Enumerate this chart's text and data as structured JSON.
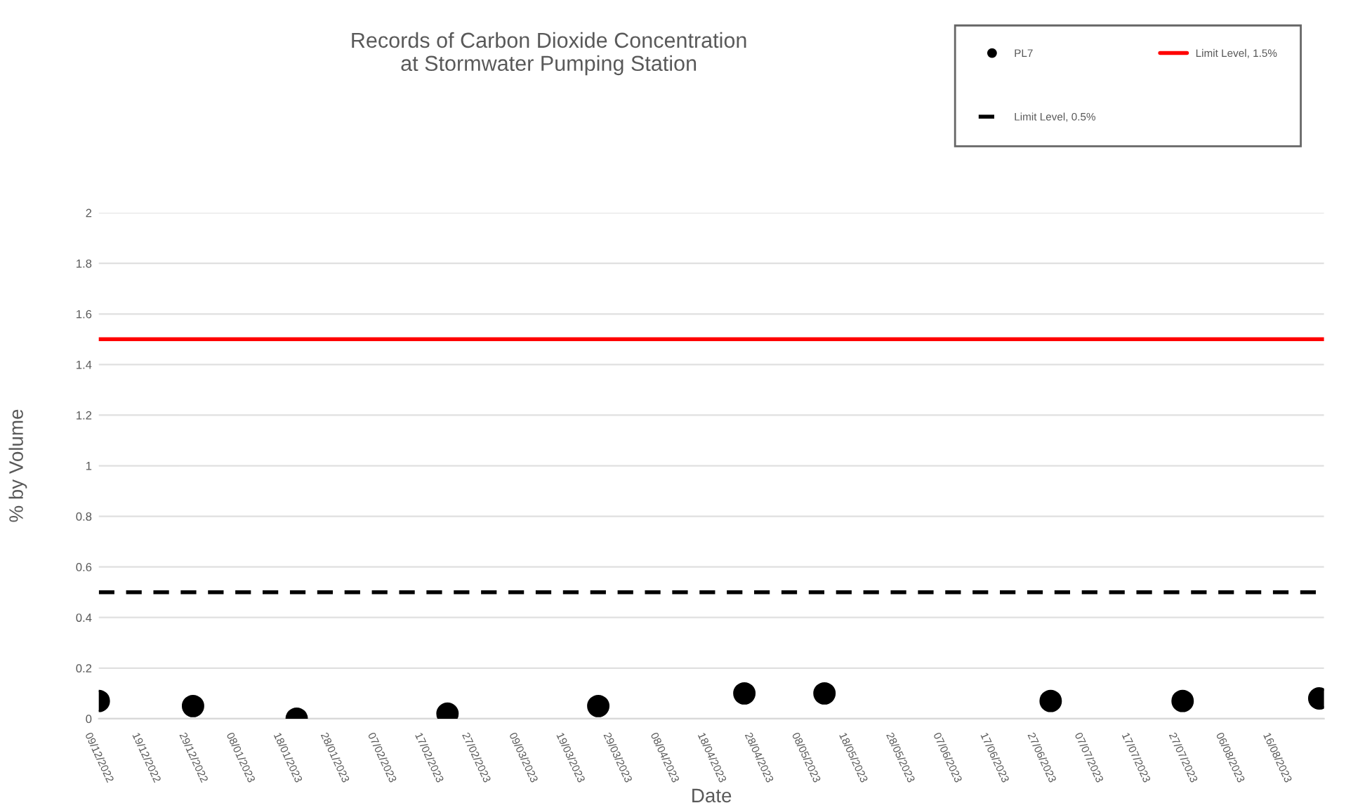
{
  "chart_data": {
    "type": "scatter",
    "title": "Records of Carbon Dioxide Concentration\nat Stormwater Pumping Station",
    "xlabel": "Date",
    "ylabel": "% by Volume",
    "series": [
      {
        "name": "PL7",
        "color": "#000000",
        "x": [
          "2022-12-09",
          "2022-12-29",
          "2023-01-20",
          "2023-02-21",
          "2023-03-25",
          "2023-04-25",
          "2023-05-12",
          "2023-06-29",
          "2023-07-27",
          "2023-08-25"
        ],
        "values": [
          0.07,
          0.05,
          0.0,
          0.02,
          0.05,
          0.1,
          0.1,
          0.07,
          0.07,
          0.08
        ]
      }
    ],
    "ref_lines": [
      {
        "axis": "y",
        "value": 0.5,
        "label": "Limit Level, 0.5%",
        "color": "#000000",
        "line_style": "dashed"
      },
      {
        "axis": "y",
        "value": 1.5,
        "label": "Limit Level, 1.5%",
        "color": "#ff0000",
        "line_style": "solid"
      }
    ],
    "marker": "circle",
    "xlim": [
      "2022-12-09",
      "2023-08-26"
    ],
    "xticks": [
      {
        "value": "2022-12-09",
        "label": "09/12/2022"
      },
      {
        "value": "2022-12-19",
        "label": "19/12/2022"
      },
      {
        "value": "2022-12-29",
        "label": "29/12/2022"
      },
      {
        "value": "2023-01-08",
        "label": "08/01/2023"
      },
      {
        "value": "2023-01-18",
        "label": "18/01/2023"
      },
      {
        "value": "2023-01-28",
        "label": "28/01/2023"
      },
      {
        "value": "2023-02-07",
        "label": "07/02/2023"
      },
      {
        "value": "2023-02-17",
        "label": "17/02/2023"
      },
      {
        "value": "2023-02-27",
        "label": "27/02/2023"
      },
      {
        "value": "2023-03-09",
        "label": "09/03/2023"
      },
      {
        "value": "2023-03-19",
        "label": "19/03/2023"
      },
      {
        "value": "2023-03-29",
        "label": "29/03/2023"
      },
      {
        "value": "2023-04-08",
        "label": "08/04/2023"
      },
      {
        "value": "2023-04-18",
        "label": "18/04/2023"
      },
      {
        "value": "2023-04-28",
        "label": "28/04/2023"
      },
      {
        "value": "2023-05-08",
        "label": "08/05/2023"
      },
      {
        "value": "2023-05-18",
        "label": "18/05/2023"
      },
      {
        "value": "2023-05-28",
        "label": "28/05/2023"
      },
      {
        "value": "2023-06-07",
        "label": "07/06/2023"
      },
      {
        "value": "2023-06-17",
        "label": "17/06/2023"
      },
      {
        "value": "2023-06-27",
        "label": "27/06/2023"
      },
      {
        "value": "2023-07-07",
        "label": "07/07/2023"
      },
      {
        "value": "2023-07-17",
        "label": "17/07/2023"
      },
      {
        "value": "2023-07-27",
        "label": "27/07/2023"
      },
      {
        "value": "2023-08-06",
        "label": "06/08/2023"
      },
      {
        "value": "2023-08-16",
        "label": "16/08/2023"
      }
    ],
    "ylim": [
      0,
      2
    ],
    "yticks": [
      0,
      0.2,
      0.4,
      0.6,
      0.8,
      1,
      1.2,
      1.4,
      1.6,
      1.8,
      2
    ],
    "grid": "y",
    "legend": "top right"
  }
}
